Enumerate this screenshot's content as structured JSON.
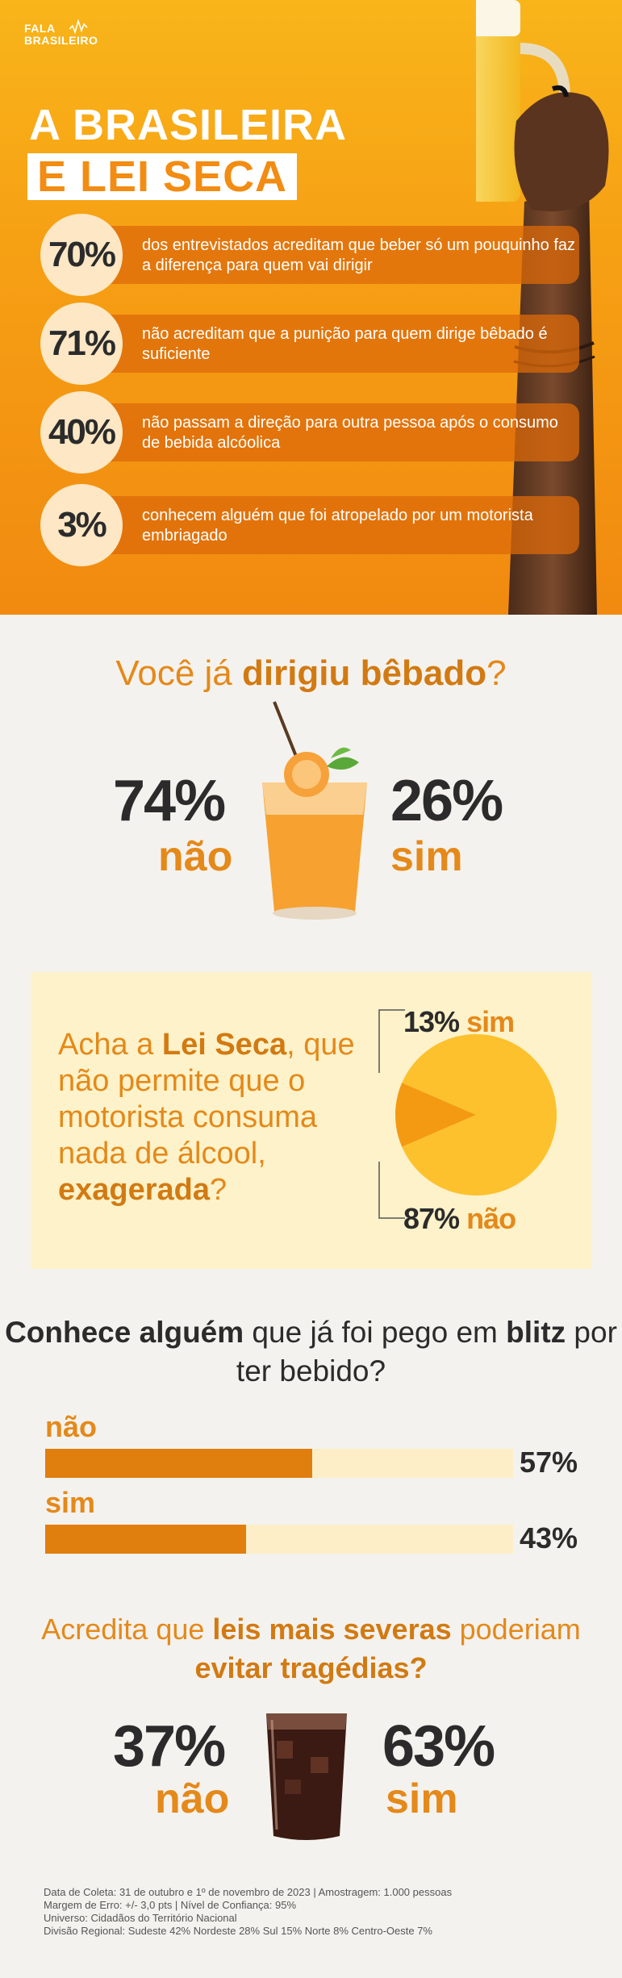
{
  "brand": {
    "name_line1": "FALA",
    "name_line2": "BRASILEIRO"
  },
  "hero": {
    "title_line1": "A BRASILEIRA",
    "title_line2": "E LEI SECA",
    "stats": [
      {
        "pct": "70%",
        "text": "dos entrevistados acreditam que beber só um pouquinho faz a diferença para quem vai dirigir"
      },
      {
        "pct": "71%",
        "text": "não acreditam que a punição para quem dirige bêbado é suficiente"
      },
      {
        "pct": "40%",
        "text": "não passam a direção para outra pessoa após o consumo de bebida alcóolica"
      },
      {
        "pct": "3%",
        "text": "conhecem alguém que foi atropelado por um motorista embriagado"
      }
    ]
  },
  "q1": {
    "title_pre": "Você já ",
    "title_bold": "dirigiu bêbado",
    "title_post": "?",
    "left_pct": "74%",
    "left_label": "não",
    "right_pct": "26%",
    "right_label": "sim"
  },
  "q2": {
    "question_pre": "Acha a ",
    "question_bold1": "Lei Seca",
    "question_mid": ", que não permite que o motorista consuma nada de álcool, ",
    "question_bold2": "exagerada",
    "question_post": "?",
    "sim_pct": "13%",
    "sim_label": "sim",
    "nao_pct": "87%",
    "nao_label": "não",
    "colors": {
      "sim": "#f39a12",
      "nao": "#fdc12d"
    }
  },
  "chart_data": [
    {
      "type": "pie",
      "categories": [
        "sim",
        "não"
      ],
      "values": [
        13,
        87
      ]
    },
    {
      "type": "bar",
      "categories": [
        "não",
        "sim"
      ],
      "values": [
        57,
        43
      ]
    }
  ],
  "q3": {
    "title_bold1": "Conhece alguém",
    "title_mid": " que já foi pego em ",
    "title_bold2": "blitz",
    "title_post": " por ter bebido?",
    "bars": [
      {
        "label": "não",
        "pct": "57%",
        "value": 57
      },
      {
        "label": "sim",
        "pct": "43%",
        "value": 43
      }
    ]
  },
  "q4": {
    "title_pre": "Acredita que ",
    "title_bold1": "leis mais severas",
    "title_mid": " poderiam ",
    "title_bold2": "evitar tragédias?",
    "left_pct": "37%",
    "left_label": "não",
    "right_pct": "63%",
    "right_label": "sim"
  },
  "footer": {
    "line1": "Data de Coleta: 31 de outubro e 1º de novembro de 2023 | Amostragem: 1.000 pessoas",
    "line2": "Margem de Erro: +/- 3,0 pts | Nível de Confiança: 95%",
    "line3": "Universo: Cidadãos do Território Nacional",
    "line4": "Divisão Regional: Sudeste 42% Nordeste 28% Sul 15% Norte 8% Centro-Oeste 7%"
  }
}
